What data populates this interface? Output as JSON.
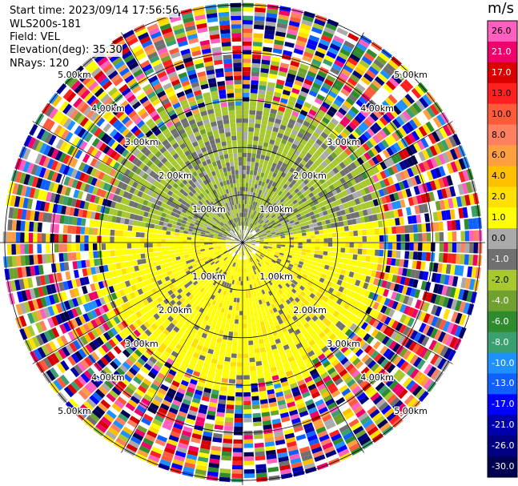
{
  "header": {
    "start_time": "Start time: 2023/09/14 17:56:56",
    "instrument": "WLS200s-181",
    "field": "Field: VEL",
    "elevation": "Elevation(deg): 35.30",
    "nrays": "NRays: 120"
  },
  "chart_data": {
    "type": "heatmap",
    "projection": "polar-ppi",
    "field": "VEL",
    "unit": "m/s",
    "elevation_deg": 35.3,
    "n_rays": 120,
    "range_rings_km": [
      1.0,
      2.0,
      3.0,
      4.0,
      5.0
    ],
    "max_range_km": 5.1,
    "range_ring_labels": [
      "1.00km",
      "2.00km",
      "3.00km",
      "4.00km",
      "5.00km"
    ],
    "spoke_angles_deg": [
      0,
      30,
      60,
      90,
      120,
      150,
      180,
      210,
      240,
      270,
      300,
      330
    ],
    "colorbar": {
      "unit": "m/s",
      "ticks": [
        "26.0",
        "21.0",
        "17.0",
        "13.0",
        "10.0",
        "8.0",
        "6.0",
        "4.0",
        "2.0",
        "1.0",
        "0.0",
        "-1.0",
        "-2.0",
        "-4.0",
        "-6.0",
        "-8.0",
        "-10.0",
        "-13.0",
        "-17.0",
        "-21.0",
        "-26.0",
        "-30.0"
      ],
      "colors": [
        "#ff5fbf",
        "#f0006a",
        "#d80000",
        "#ff2020",
        "#ff5a3a",
        "#ff8060",
        "#ffa040",
        "#ffc000",
        "#ffe000",
        "#ffff00",
        "#aaaaaa",
        "#707070",
        "#a8c830",
        "#70a030",
        "#2e8b2e",
        "#3aa070",
        "#1e90ff",
        "#1060ff",
        "#0000ff",
        "#0000aa",
        "#000080",
        "#000050"
      ]
    },
    "pattern": {
      "clean_radius_km": 2.8,
      "near_south_color": "#ffff00",
      "near_north_color": "#a8c830",
      "noise_start_km": 3.2
    }
  }
}
